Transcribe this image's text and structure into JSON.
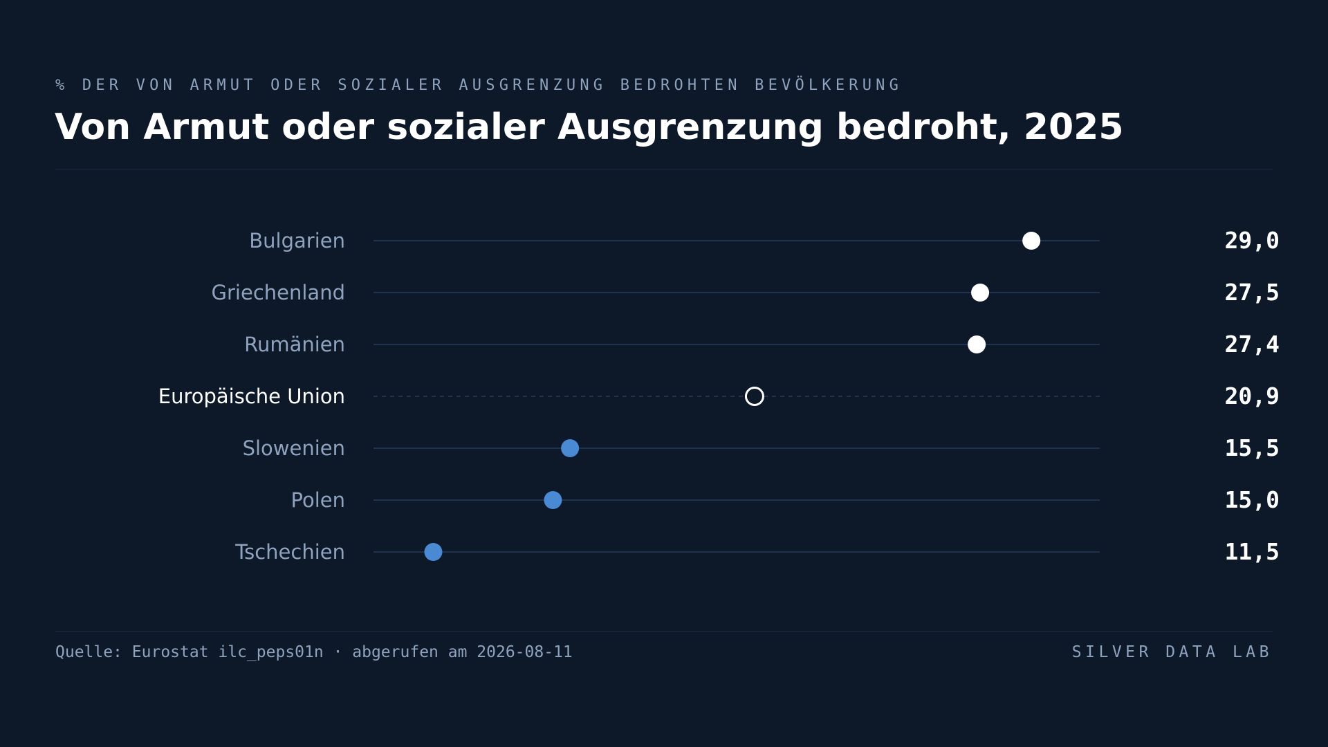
{
  "header": {
    "kicker": "% DER VON ARMUT ODER SOZIALER AUSGRENZUNG BEDROHTEN BEVÖLKERUNG",
    "title": "Von Armut oder sozialer Ausgrenzung bedroht, 2025"
  },
  "footer": {
    "source": "Quelle: Eurostat ilc_peps01n · abgerufen am 2026-08-11",
    "brand": "SILVER DATA LAB"
  },
  "colors": {
    "background": "#0d1929",
    "highlight_point": "#ffffff",
    "low_point": "#4a8ad4",
    "reference_point": "#ffffff",
    "track_line": "#1f3350",
    "label_text": "#8fa3bf",
    "value_text": "#ffffff"
  },
  "chart_data": {
    "type": "dot",
    "categories": [
      "Bulgarien",
      "Griechenland",
      "Rumänien",
      "Europäische Union",
      "Slowenien",
      "Polen",
      "Tschechien"
    ],
    "values": [
      29.0,
      27.5,
      27.4,
      20.9,
      15.5,
      15.0,
      11.5
    ],
    "value_labels": [
      "29,0",
      "27,5",
      "27,4",
      "20,9",
      "15,5",
      "15,0",
      "11,5"
    ],
    "reference_category": "Europäische Union",
    "groups": [
      "high",
      "high",
      "high",
      "reference",
      "low",
      "low",
      "low"
    ],
    "xlim": [
      9.75,
      31.0
    ],
    "grid": false,
    "legend": "none"
  }
}
